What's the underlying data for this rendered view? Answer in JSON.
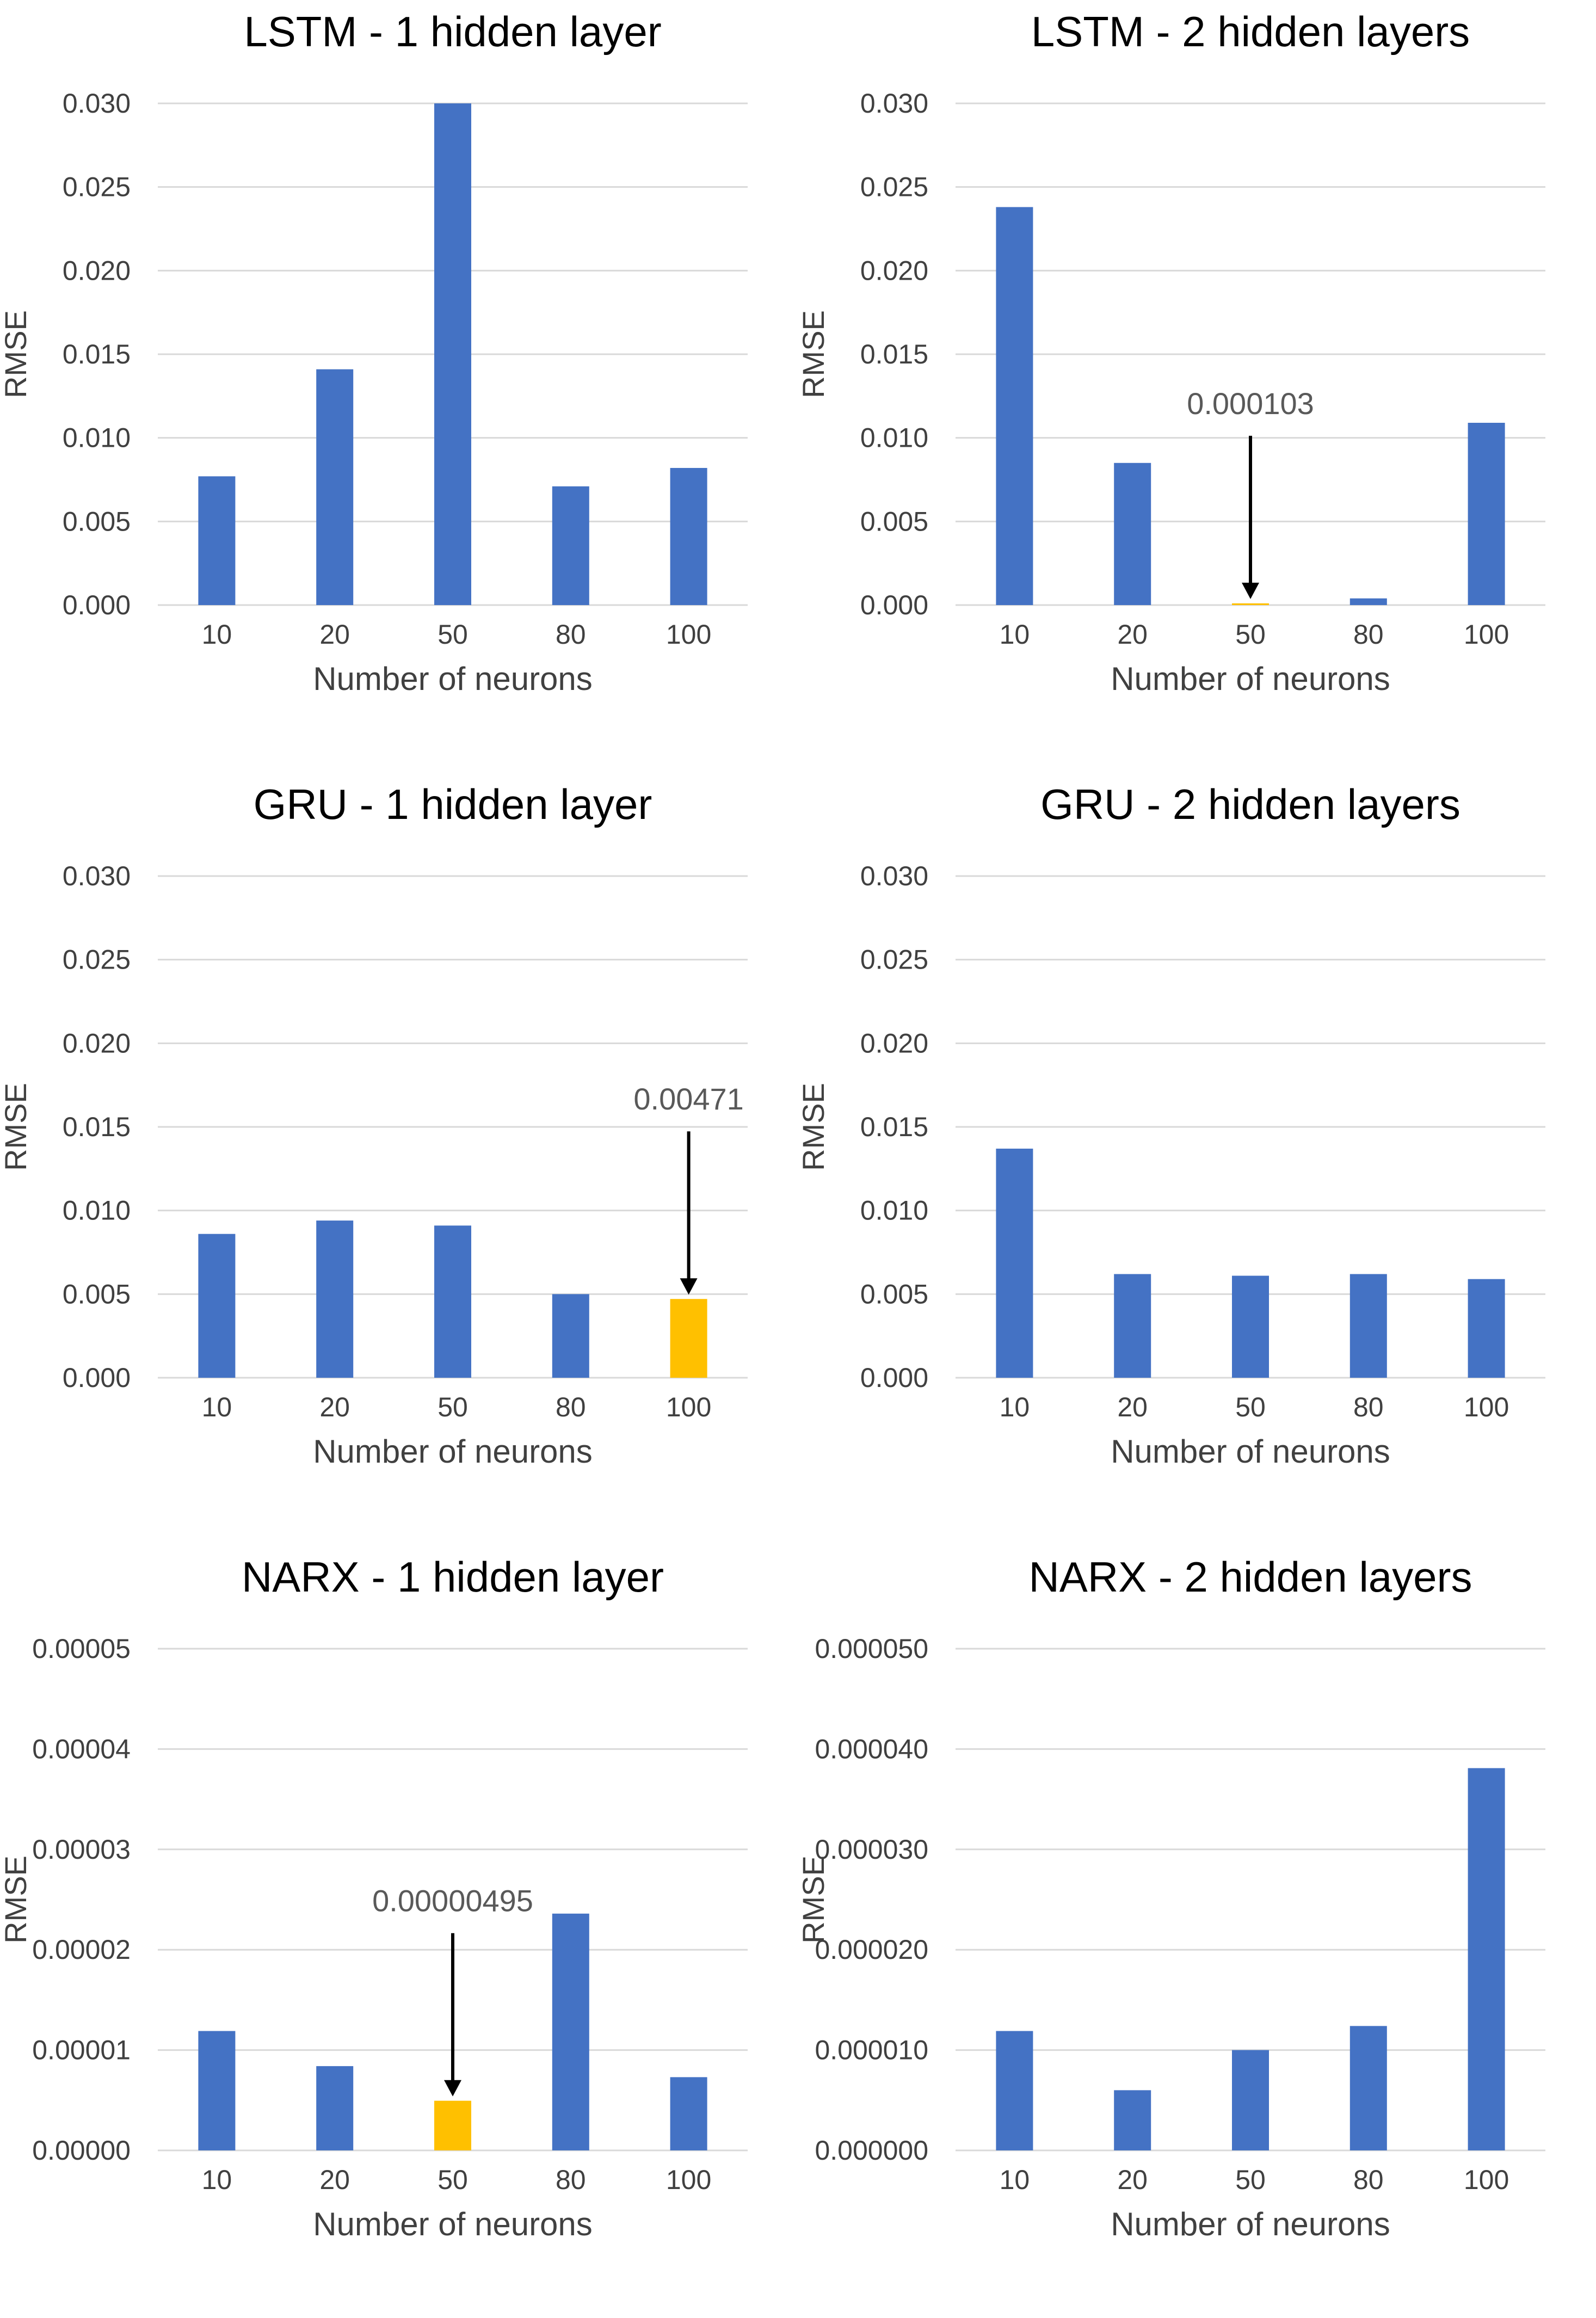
{
  "chart_data": [
    {
      "type": "bar",
      "title": "LSTM - 1 hidden layer",
      "xlabel": "Number of neurons",
      "ylabel": "RMSE",
      "categories": [
        "10",
        "20",
        "50",
        "80",
        "100"
      ],
      "values": [
        0.0077,
        0.0141,
        0.03,
        0.0071,
        0.0082
      ],
      "highlight_index": null,
      "annotation": null,
      "ylim": [
        0,
        0.03
      ],
      "yticks": [
        "0.000",
        "0.005",
        "0.010",
        "0.015",
        "0.020",
        "0.025",
        "0.030"
      ]
    },
    {
      "type": "bar",
      "title": "LSTM - 2 hidden layers",
      "xlabel": "Number of neurons",
      "ylabel": "RMSE",
      "categories": [
        "10",
        "20",
        "50",
        "80",
        "100"
      ],
      "values": [
        0.0238,
        0.0085,
        0.000103,
        0.0004,
        0.0109
      ],
      "highlight_index": 2,
      "annotation": "0.000103",
      "ylim": [
        0,
        0.03
      ],
      "yticks": [
        "0.000",
        "0.005",
        "0.010",
        "0.015",
        "0.020",
        "0.025",
        "0.030"
      ]
    },
    {
      "type": "bar",
      "title": "GRU - 1 hidden layer",
      "xlabel": "Number of neurons",
      "ylabel": "RMSE",
      "categories": [
        "10",
        "20",
        "50",
        "80",
        "100"
      ],
      "values": [
        0.0086,
        0.0094,
        0.0091,
        0.005,
        0.00471
      ],
      "highlight_index": 4,
      "annotation": "0.00471",
      "ylim": [
        0,
        0.03
      ],
      "yticks": [
        "0.000",
        "0.005",
        "0.010",
        "0.015",
        "0.020",
        "0.025",
        "0.030"
      ]
    },
    {
      "type": "bar",
      "title": "GRU - 2 hidden layers",
      "xlabel": "Number of neurons",
      "ylabel": "RMSE",
      "categories": [
        "10",
        "20",
        "50",
        "80",
        "100"
      ],
      "values": [
        0.0137,
        0.0062,
        0.0061,
        0.0062,
        0.0059
      ],
      "highlight_index": null,
      "annotation": null,
      "ylim": [
        0,
        0.03
      ],
      "yticks": [
        "0.000",
        "0.005",
        "0.010",
        "0.015",
        "0.020",
        "0.025",
        "0.030"
      ]
    },
    {
      "type": "bar",
      "title": "NARX - 1 hidden layer",
      "xlabel": "Number of neurons",
      "ylabel": "RMSE",
      "categories": [
        "10",
        "20",
        "50",
        "80",
        "100"
      ],
      "values": [
        1.19e-05,
        8.4e-06,
        4.95e-06,
        2.36e-05,
        7.3e-06
      ],
      "highlight_index": 2,
      "annotation": "0.00000495",
      "ylim": [
        0,
        5e-05
      ],
      "yticks": [
        "0.00000",
        "0.00001",
        "0.00002",
        "0.00003",
        "0.00004",
        "0.00005"
      ]
    },
    {
      "type": "bar",
      "title": "NARX - 2 hidden layers",
      "xlabel": "Number of neurons",
      "ylabel": "RMSE",
      "categories": [
        "10",
        "20",
        "50",
        "80",
        "100"
      ],
      "values": [
        1.19e-05,
        6e-06,
        1e-05,
        1.24e-05,
        3.81e-05
      ],
      "highlight_index": null,
      "annotation": null,
      "ylim": [
        0,
        5e-05
      ],
      "yticks": [
        "0.000000",
        "0.000010",
        "0.000020",
        "0.000030",
        "0.000040",
        "0.000050"
      ]
    }
  ],
  "colors": {
    "bar": "#4472C4",
    "highlight": "#FFC000",
    "grid": "#D9D9D9",
    "text": "#404040",
    "annotation_text": "#595959",
    "arrow": "#000000"
  }
}
